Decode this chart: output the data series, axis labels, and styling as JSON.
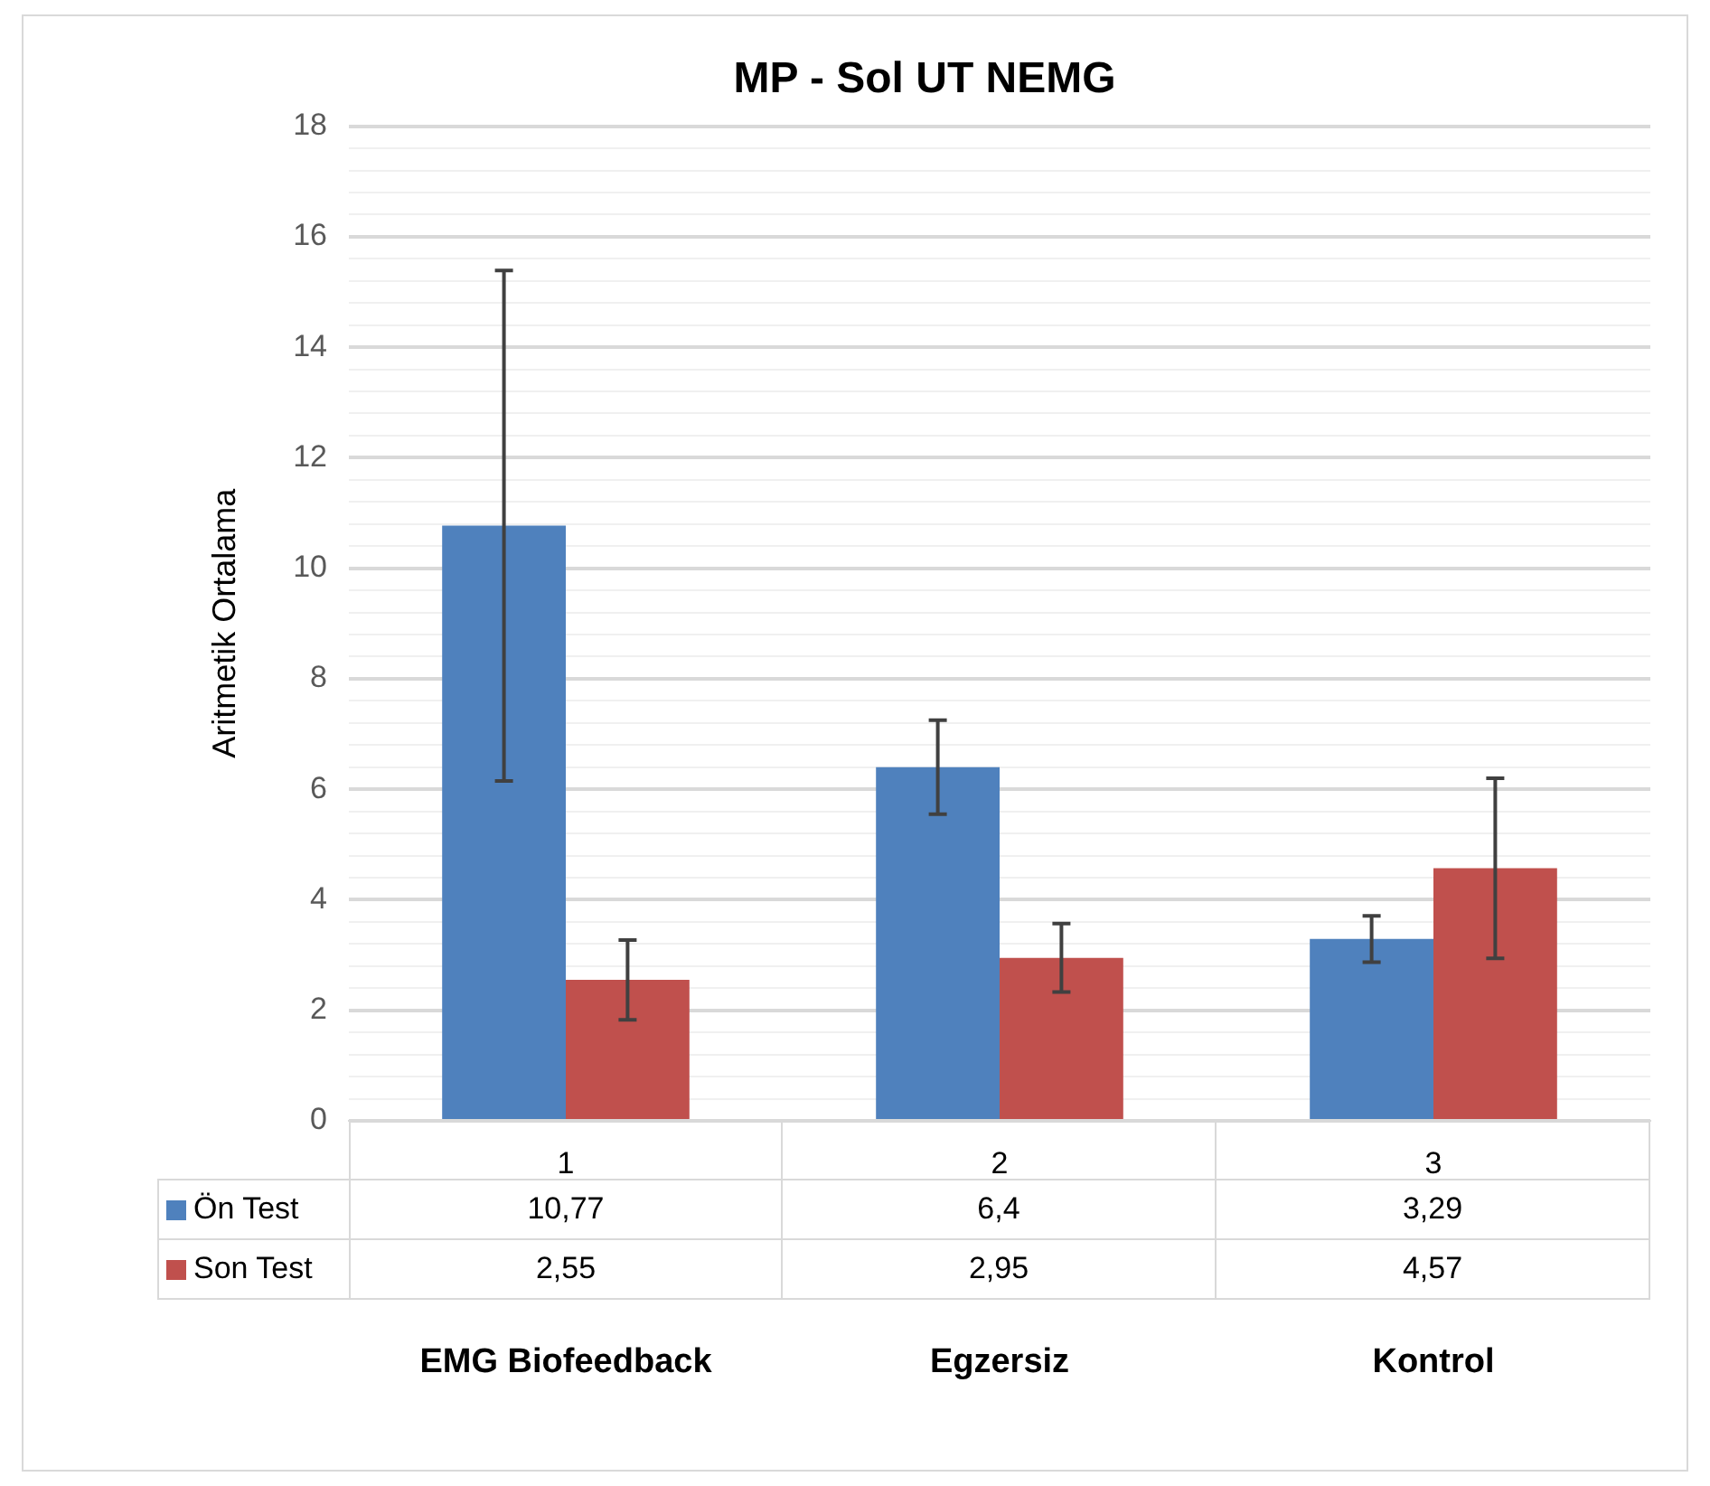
{
  "chart_data": {
    "type": "bar",
    "title": "MP - Sol UT NEMG",
    "ylabel": "Aritmetik Ortalama",
    "categories": [
      "1",
      "2",
      "3"
    ],
    "series": [
      {
        "name": "Ön Test",
        "color": "#4f81bd",
        "values": [
          10.77,
          6.4,
          3.29
        ],
        "errors": [
          4.62,
          0.85,
          0.42
        ],
        "value_labels": [
          "10,77",
          "6,4",
          "3,29"
        ]
      },
      {
        "name": "Son Test",
        "color": "#c0504d",
        "values": [
          2.55,
          2.95,
          4.57
        ],
        "errors": [
          0.72,
          0.62,
          1.63
        ],
        "value_labels": [
          "2,55",
          "2,95",
          "4,57"
        ]
      }
    ],
    "ylim": [
      0,
      18
    ],
    "yticks": [
      0,
      {
        "value": 0.4,
        "label": null
      },
      {
        "value": 0.8,
        "label": null
      },
      {
        "value": 1.2,
        "label": null
      },
      {
        "value": 1.6,
        "label": null
      },
      2,
      {
        "value": 2.4,
        "label": null
      },
      {
        "value": 2.8,
        "label": null
      },
      {
        "value": 3.2,
        "label": null
      },
      {
        "value": 3.6,
        "label": null
      },
      4,
      {
        "value": 4.4,
        "label": null
      },
      {
        "value": 4.8,
        "label": null
      },
      {
        "value": 5.2,
        "label": null
      },
      {
        "value": 5.6,
        "label": null
      },
      6,
      {
        "value": 6.4,
        "label": null
      },
      {
        "value": 6.8,
        "label": null
      },
      {
        "value": 7.2,
        "label": null
      },
      {
        "value": 7.6,
        "label": null
      },
      8,
      {
        "value": 8.4,
        "label": null
      },
      {
        "value": 8.8,
        "label": null
      },
      {
        "value": 9.2,
        "label": null
      },
      {
        "value": 9.6,
        "label": null
      },
      10,
      {
        "value": 10.4,
        "label": null
      },
      {
        "value": 10.8,
        "label": null
      },
      {
        "value": 11.2,
        "label": null
      },
      {
        "value": 11.6,
        "label": null
      },
      12,
      {
        "value": 12.4,
        "label": null
      },
      {
        "value": 12.8,
        "label": null
      },
      {
        "value": 13.2,
        "label": null
      },
      {
        "value": 13.6,
        "label": null
      },
      14,
      {
        "value": 14.4,
        "label": null
      },
      {
        "value": 14.8,
        "label": null
      },
      {
        "value": 15.2,
        "label": null
      },
      {
        "value": 15.6,
        "label": null
      },
      16,
      {
        "value": 16.4,
        "label": null
      },
      {
        "value": 16.8,
        "label": null
      },
      {
        "value": 17.2,
        "label": null
      },
      {
        "value": 17.6,
        "label": null
      },
      18
    ],
    "grid": "y",
    "legend": "bottom",
    "annotations": [
      "EMG Biofeedback",
      "Egzersiz",
      "Kontrol"
    ]
  }
}
